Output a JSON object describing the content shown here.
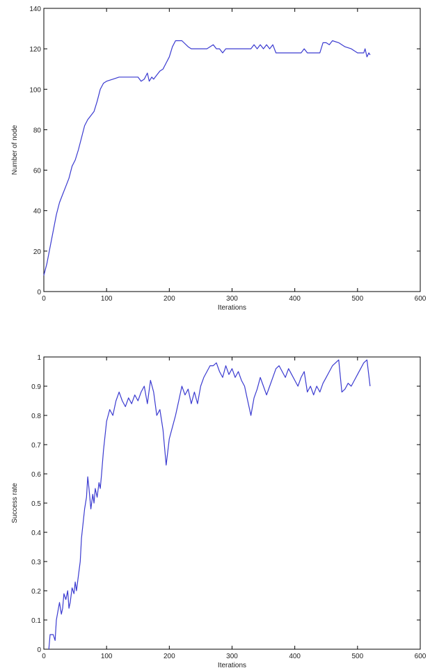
{
  "chart_data": [
    {
      "type": "line",
      "xlabel": "Iterations",
      "ylabel": "Number of node",
      "xlim": [
        0,
        600
      ],
      "ylim": [
        0,
        140
      ],
      "xticks": [
        0,
        100,
        200,
        300,
        400,
        500,
        600
      ],
      "yticks": [
        0,
        20,
        40,
        60,
        80,
        100,
        120,
        140
      ],
      "grid": false,
      "line_color": "#3a3ad0",
      "x": [
        0,
        5,
        10,
        15,
        20,
        25,
        30,
        35,
        40,
        45,
        50,
        55,
        60,
        65,
        70,
        75,
        80,
        85,
        90,
        95,
        100,
        110,
        120,
        130,
        140,
        150,
        155,
        160,
        165,
        168,
        172,
        175,
        180,
        185,
        190,
        195,
        200,
        205,
        210,
        215,
        220,
        230,
        235,
        240,
        250,
        260,
        270,
        275,
        280,
        285,
        290,
        300,
        310,
        320,
        330,
        335,
        340,
        345,
        350,
        355,
        360,
        365,
        370,
        380,
        390,
        400,
        410,
        415,
        420,
        430,
        440,
        445,
        450,
        455,
        460,
        470,
        480,
        490,
        500,
        505,
        510,
        512,
        515,
        518,
        520
      ],
      "y": [
        8,
        14,
        22,
        30,
        38,
        44,
        48,
        52,
        56,
        62,
        65,
        70,
        76,
        82,
        85,
        87,
        89,
        94,
        100,
        103,
        104,
        105,
        106,
        106,
        106,
        106,
        104,
        105,
        108,
        104,
        106,
        105,
        107,
        109,
        110,
        113,
        116,
        121,
        124,
        124,
        124,
        121,
        120,
        120,
        120,
        120,
        122,
        120,
        120,
        118,
        120,
        120,
        120,
        120,
        120,
        122,
        120,
        122,
        120,
        122,
        120,
        122,
        118,
        118,
        118,
        118,
        118,
        120,
        118,
        118,
        118,
        123,
        123,
        122,
        124,
        123,
        121,
        120,
        118,
        118,
        118,
        120,
        116,
        118,
        117
      ]
    },
    {
      "type": "line",
      "xlabel": "Iterations",
      "ylabel": "Success rate",
      "xlim": [
        0,
        600
      ],
      "ylim": [
        0,
        1
      ],
      "xticks": [
        0,
        100,
        200,
        300,
        400,
        500,
        600
      ],
      "yticks": [
        0,
        0.1,
        0.2,
        0.3,
        0.4,
        0.5,
        0.6,
        0.7,
        0.8,
        0.9,
        1
      ],
      "grid": false,
      "line_color": "#3a3ad0",
      "x": [
        8,
        10,
        15,
        18,
        20,
        25,
        28,
        30,
        32,
        35,
        38,
        40,
        42,
        45,
        48,
        50,
        52,
        55,
        58,
        60,
        62,
        65,
        68,
        70,
        72,
        75,
        78,
        80,
        82,
        85,
        88,
        90,
        92,
        95,
        98,
        100,
        105,
        110,
        115,
        120,
        125,
        130,
        135,
        140,
        145,
        150,
        155,
        160,
        165,
        170,
        175,
        180,
        185,
        190,
        195,
        200,
        205,
        210,
        215,
        220,
        225,
        230,
        235,
        240,
        245,
        250,
        255,
        260,
        265,
        270,
        275,
        280,
        285,
        290,
        295,
        300,
        305,
        310,
        315,
        320,
        325,
        330,
        335,
        340,
        345,
        350,
        355,
        360,
        365,
        370,
        375,
        380,
        385,
        390,
        395,
        400,
        405,
        410,
        415,
        420,
        425,
        430,
        435,
        440,
        445,
        450,
        455,
        460,
        465,
        470,
        475,
        480,
        485,
        490,
        495,
        500,
        505,
        510,
        515,
        520
      ],
      "y": [
        0.0,
        0.05,
        0.05,
        0.03,
        0.1,
        0.16,
        0.12,
        0.14,
        0.19,
        0.17,
        0.2,
        0.14,
        0.16,
        0.21,
        0.19,
        0.23,
        0.2,
        0.25,
        0.3,
        0.38,
        0.42,
        0.48,
        0.52,
        0.59,
        0.55,
        0.48,
        0.53,
        0.5,
        0.55,
        0.52,
        0.57,
        0.55,
        0.6,
        0.68,
        0.74,
        0.78,
        0.82,
        0.8,
        0.85,
        0.88,
        0.85,
        0.83,
        0.86,
        0.84,
        0.87,
        0.85,
        0.88,
        0.9,
        0.84,
        0.92,
        0.88,
        0.8,
        0.82,
        0.75,
        0.63,
        0.72,
        0.76,
        0.8,
        0.85,
        0.9,
        0.87,
        0.89,
        0.84,
        0.88,
        0.84,
        0.9,
        0.93,
        0.95,
        0.97,
        0.97,
        0.98,
        0.95,
        0.93,
        0.97,
        0.94,
        0.96,
        0.93,
        0.95,
        0.92,
        0.9,
        0.85,
        0.8,
        0.86,
        0.89,
        0.93,
        0.9,
        0.87,
        0.9,
        0.93,
        0.96,
        0.97,
        0.95,
        0.93,
        0.96,
        0.94,
        0.92,
        0.9,
        0.93,
        0.95,
        0.88,
        0.9,
        0.87,
        0.9,
        0.88,
        0.91,
        0.93,
        0.95,
        0.97,
        0.98,
        0.99,
        0.88,
        0.89,
        0.91,
        0.9,
        0.92,
        0.94,
        0.96,
        0.98,
        0.99,
        0.9
      ]
    }
  ]
}
